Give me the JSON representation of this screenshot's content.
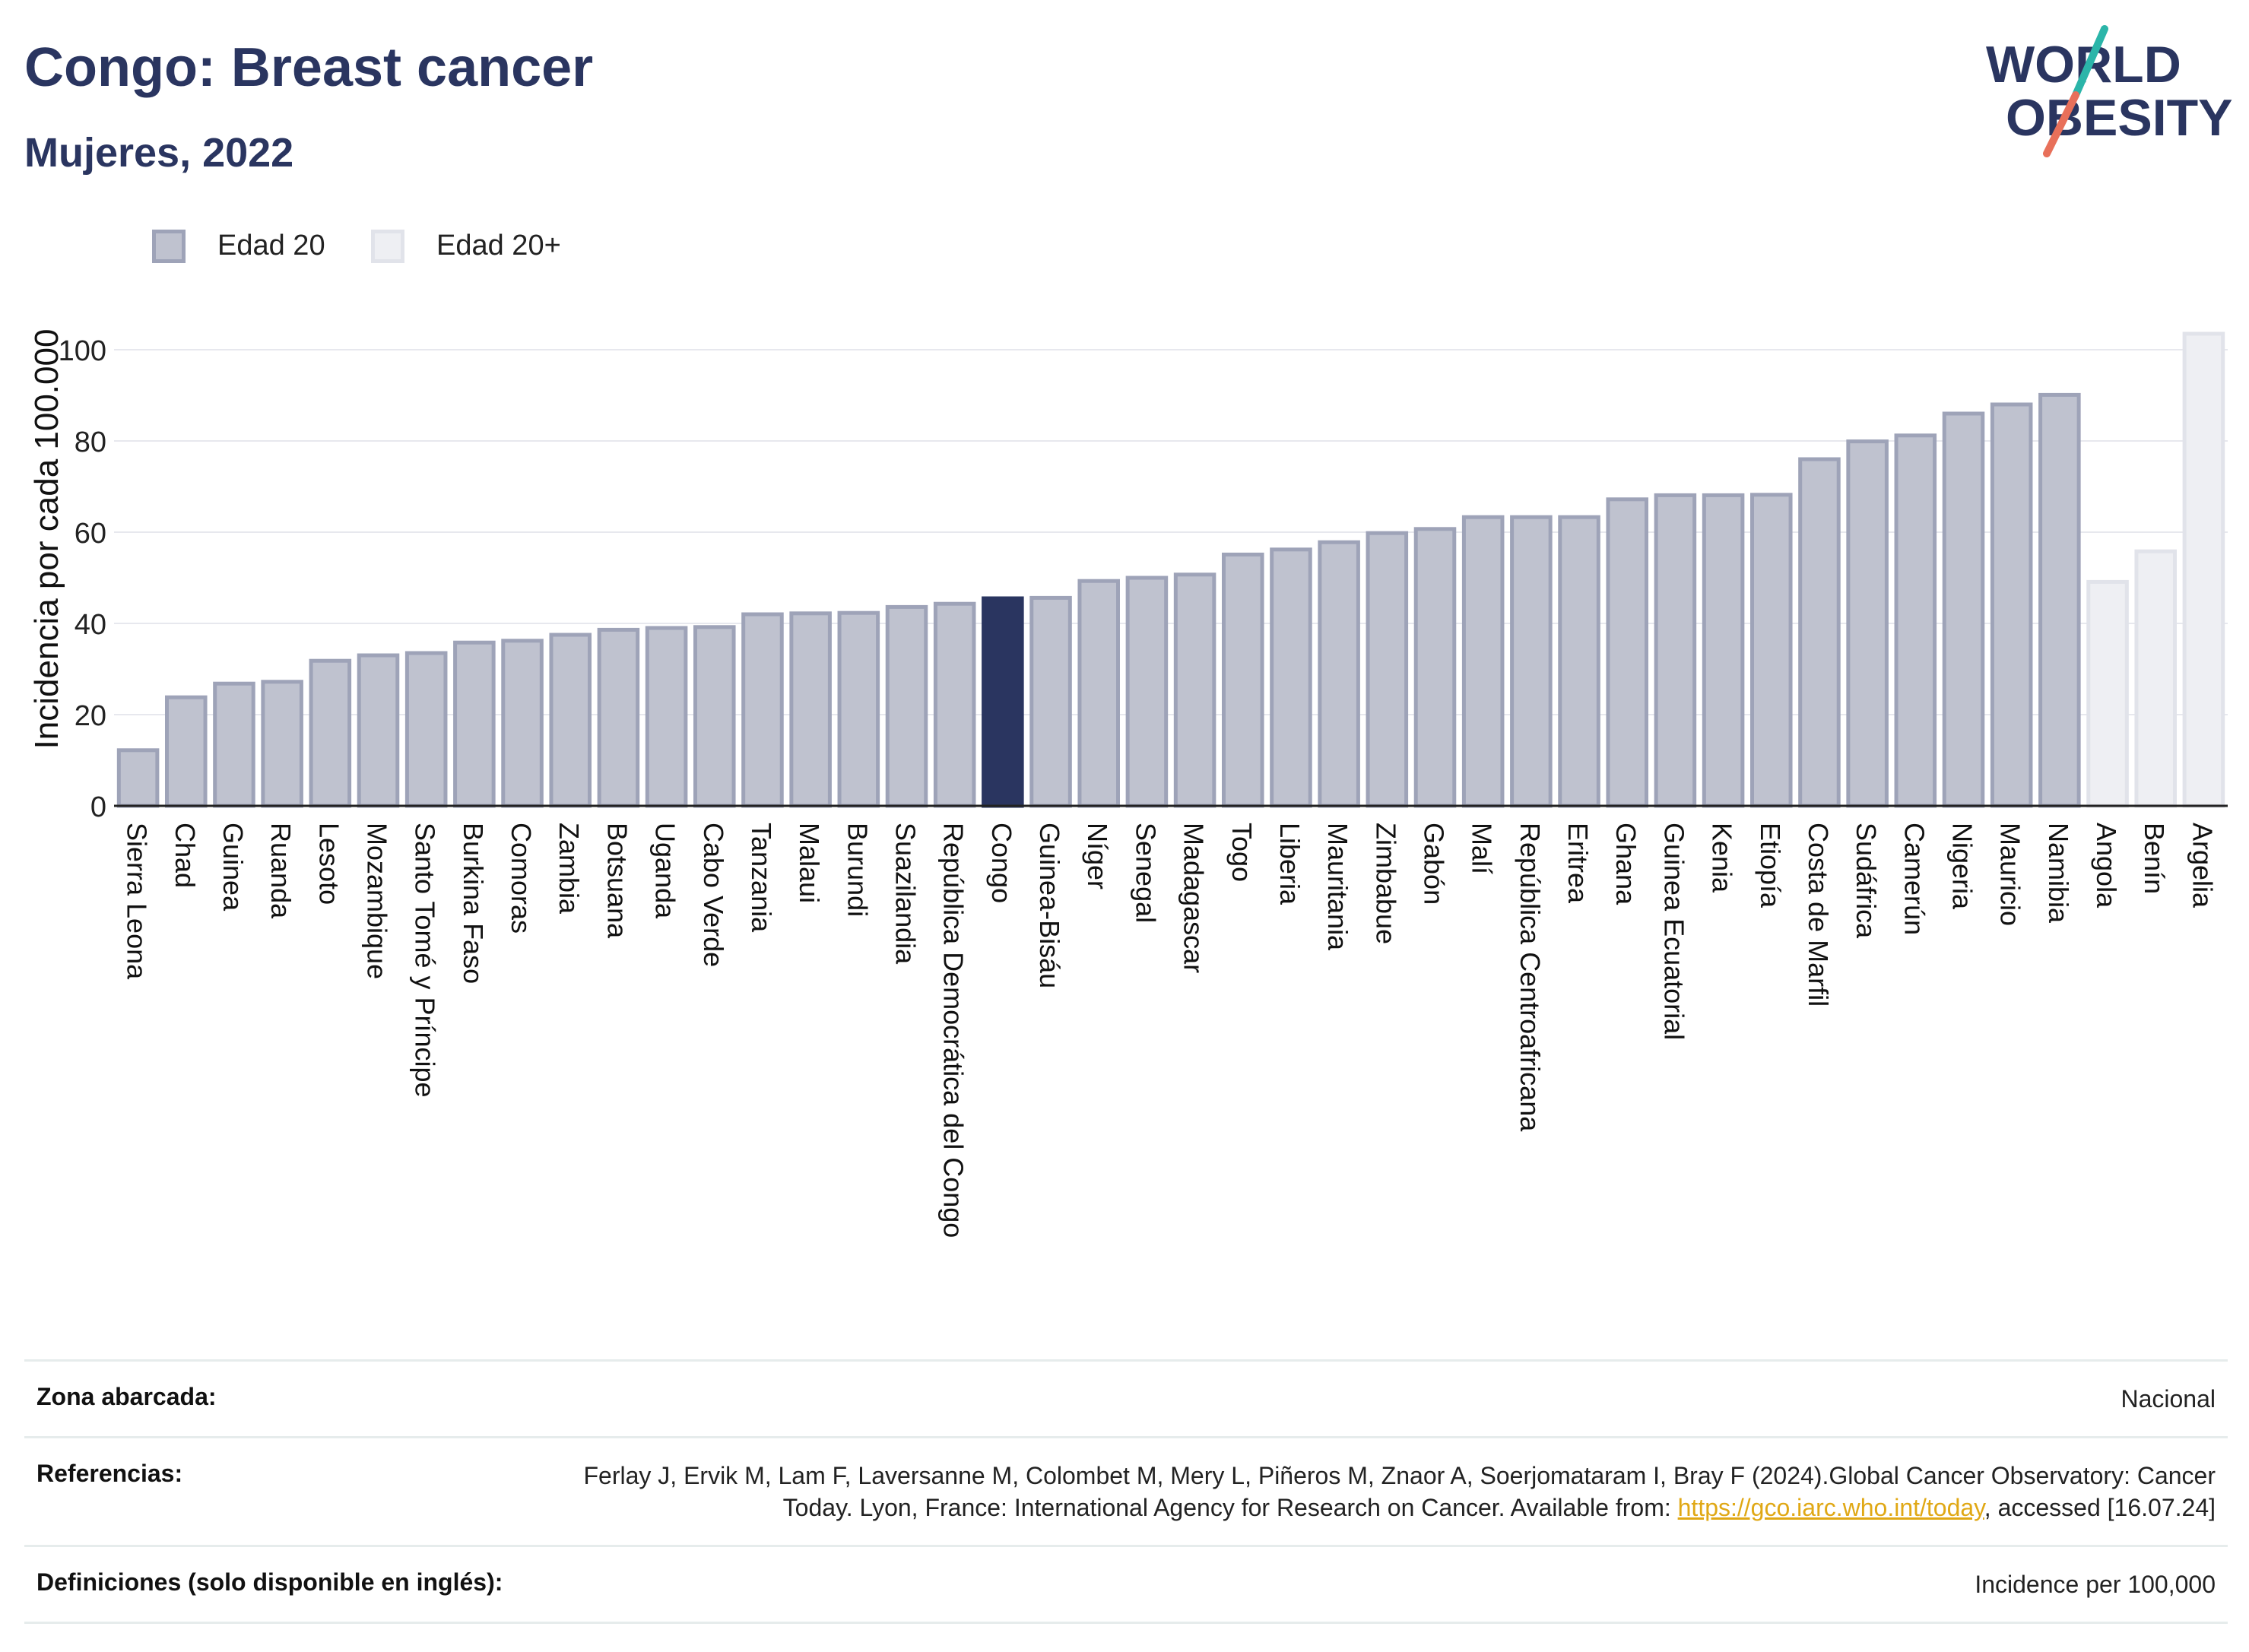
{
  "header": {
    "title": "Congo: Breast cancer",
    "subtitle": "Mujeres, 2022"
  },
  "logo": {
    "line1": "WORLD",
    "line2": "OBESITY",
    "colors": {
      "text": "#2a3560",
      "teal": "#2bb5a9",
      "coral": "#e8705a"
    }
  },
  "legend": [
    {
      "label": "Edad 20",
      "fill": "#bfc2cf",
      "stroke": "#9ea3b8"
    },
    {
      "label": "Edad 20+",
      "fill": "#eeeff3",
      "stroke": "#e1e3ea"
    }
  ],
  "colors": {
    "highlight": "#2a3560",
    "bar_fill": "#bfc2cf",
    "bar_stroke": "#9ea3b8",
    "bar_alt_fill": "#eeeff3",
    "bar_alt_stroke": "#e1e3ea",
    "grid": "#e7e8ee",
    "axis": "#222222"
  },
  "chart_data": {
    "type": "bar",
    "title": "Congo: Breast cancer",
    "subtitle": "Mujeres, 2022",
    "ylabel": "Incidencia por cada 100.000",
    "xlabel": "",
    "ylim": [
      0,
      100
    ],
    "yticks": [
      0,
      20,
      40,
      60,
      80,
      100
    ],
    "grid": true,
    "legend_position": "top-left",
    "highlight": "Congo",
    "categories": [
      "Sierra Leona",
      "Chad",
      "Guinea",
      "Ruanda",
      "Lesoto",
      "Mozambique",
      "Santo Tomé y Príncipe",
      "Burkina Faso",
      "Comoras",
      "Zambia",
      "Botsuana",
      "Uganda",
      "Cabo Verde",
      "Tanzania",
      "Malaui",
      "Burundi",
      "Suazilandia",
      "República Democrática del Congo",
      "Congo",
      "Guinea-Bisáu",
      "Níger",
      "Senegal",
      "Madagascar",
      "Togo",
      "Liberia",
      "Mauritania",
      "Zimbabue",
      "Gabón",
      "Malí",
      "República Centroafricana",
      "Eritrea",
      "Ghana",
      "Guinea Ecuatorial",
      "Kenia",
      "Etiopía",
      "Costa de Marfil",
      "Sudáfrica",
      "Camerún",
      "Nigeria",
      "Mauricio",
      "Namibia",
      "Angola",
      "Benín",
      "Argelia"
    ],
    "values": [
      12.2,
      23.8,
      26.8,
      27.2,
      31.8,
      33.0,
      33.5,
      35.8,
      36.2,
      37.5,
      38.6,
      39.0,
      39.2,
      42.0,
      42.2,
      42.3,
      43.6,
      44.3,
      45.5,
      45.6,
      49.3,
      50.0,
      50.7,
      55.1,
      56.2,
      57.8,
      59.8,
      60.7,
      63.3,
      63.3,
      63.3,
      67.2,
      68.1,
      68.1,
      68.2,
      76.0,
      79.9,
      81.2,
      86.0,
      88.0,
      90.1,
      49.1,
      55.8,
      103.5
    ],
    "series_group": [
      "Edad 20",
      "Edad 20",
      "Edad 20",
      "Edad 20",
      "Edad 20",
      "Edad 20",
      "Edad 20",
      "Edad 20",
      "Edad 20",
      "Edad 20",
      "Edad 20",
      "Edad 20",
      "Edad 20",
      "Edad 20",
      "Edad 20",
      "Edad 20",
      "Edad 20",
      "Edad 20",
      "Edad 20",
      "Edad 20",
      "Edad 20",
      "Edad 20",
      "Edad 20",
      "Edad 20",
      "Edad 20",
      "Edad 20",
      "Edad 20",
      "Edad 20",
      "Edad 20",
      "Edad 20",
      "Edad 20",
      "Edad 20",
      "Edad 20",
      "Edad 20",
      "Edad 20",
      "Edad 20",
      "Edad 20",
      "Edad 20",
      "Edad 20",
      "Edad 20",
      "Edad 20",
      "Edad 20+",
      "Edad 20+",
      "Edad 20+"
    ]
  },
  "info": {
    "zona_label": "Zona abarcada:",
    "zona_value": "Nacional",
    "ref_label": "Referencias:",
    "ref_text_before": "Ferlay J, Ervik M, Lam F, Laversanne M, Colombet M, Mery L, Piñeros M, Znaor A, Soerjomataram I, Bray F (2024).Global Cancer Observatory: Cancer Today. Lyon, France: International Agency for Research on Cancer. Available from: ",
    "ref_link": "https://gco.iarc.who.int/today",
    "ref_text_after": ", accessed [16.07.24]",
    "def_label": "Definiciones (solo disponible en inglés):",
    "def_value": "Incidence per 100,000"
  }
}
